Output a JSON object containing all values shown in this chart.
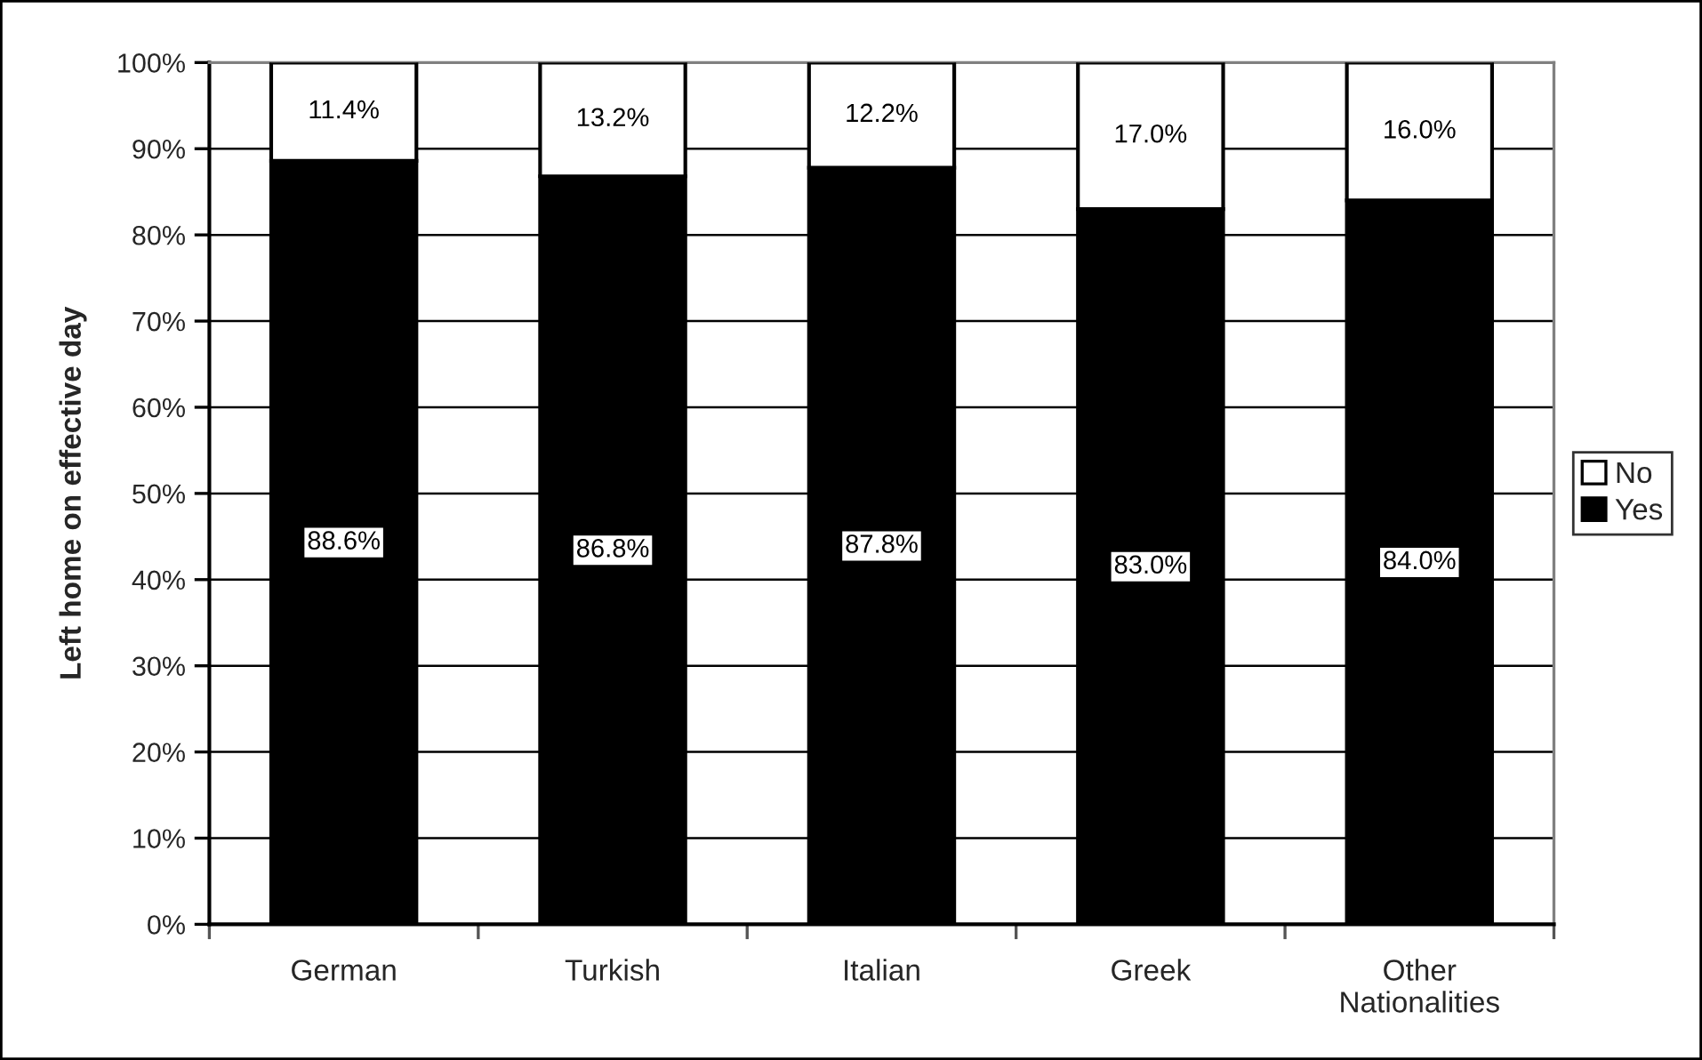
{
  "chart_data": {
    "type": "bar",
    "stacked": true,
    "ylabel": "Left home on effective day",
    "categories": [
      "German",
      "Turkish",
      "Italian",
      "Greek",
      "Other\nNationalities"
    ],
    "series": [
      {
        "name": "Yes",
        "color": "#000000",
        "values": [
          88.6,
          86.8,
          87.8,
          83.0,
          84.0
        ],
        "value_labels": [
          "88.6%",
          "86.8%",
          "87.8%",
          "83.0%",
          "84.0%"
        ]
      },
      {
        "name": "No",
        "color": "#ffffff",
        "values": [
          11.4,
          13.2,
          12.2,
          17.0,
          16.0
        ],
        "value_labels": [
          "11.4%",
          "13.2%",
          "12.2%",
          "17.0%",
          "16.0%"
        ]
      }
    ],
    "ylim": [
      0,
      100
    ],
    "yticks": [
      {
        "value": 0,
        "label": "0%"
      },
      {
        "value": 10,
        "label": "10%"
      },
      {
        "value": 20,
        "label": "20%"
      },
      {
        "value": 30,
        "label": "30%"
      },
      {
        "value": 40,
        "label": "40%"
      },
      {
        "value": 50,
        "label": "50%"
      },
      {
        "value": 60,
        "label": "60%"
      },
      {
        "value": 70,
        "label": "70%"
      },
      {
        "value": 80,
        "label": "80%"
      },
      {
        "value": 90,
        "label": "90%"
      },
      {
        "value": 100,
        "label": "100%"
      }
    ],
    "grid": "y",
    "legend": "right"
  }
}
